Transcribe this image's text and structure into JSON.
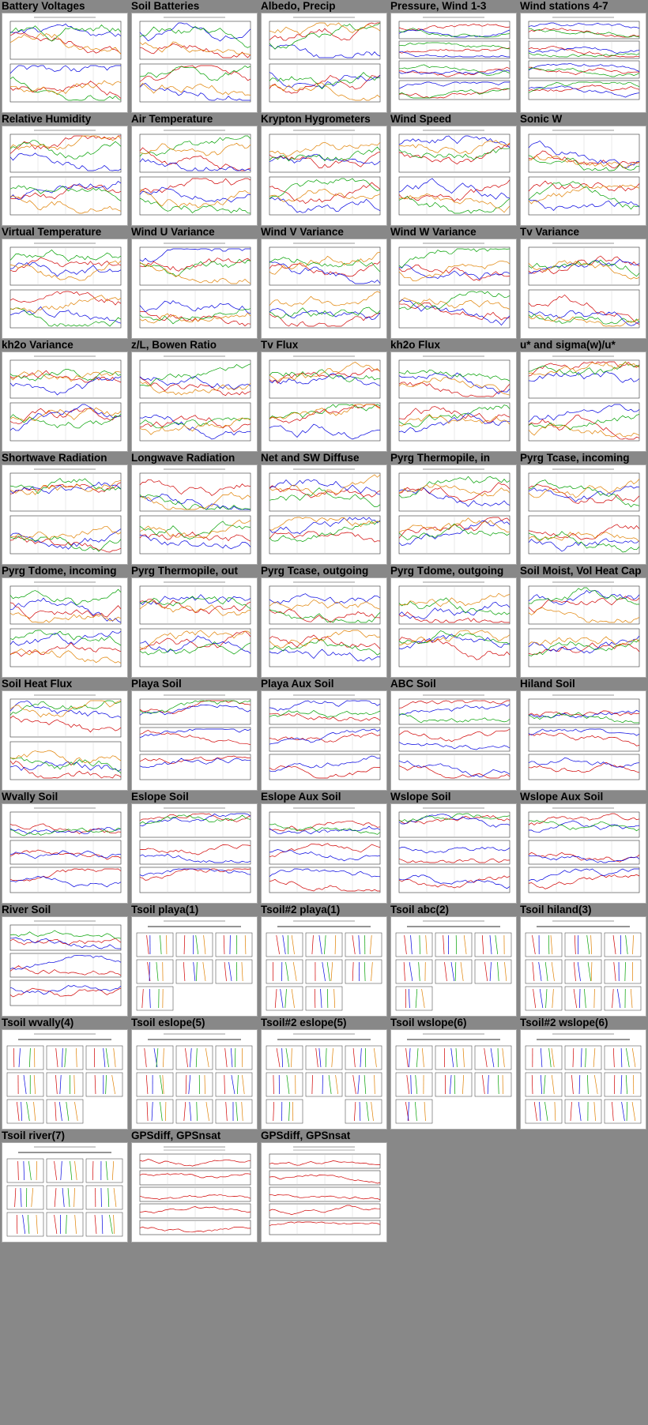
{
  "page": {
    "background": "#888888"
  },
  "thumbnails": [
    {
      "label": "Battery Voltages",
      "kind": "plot2"
    },
    {
      "label": "Soil Batteries",
      "kind": "plot2"
    },
    {
      "label": "Albedo, Precip",
      "kind": "plot2"
    },
    {
      "label": "Pressure, Wind 1-3",
      "kind": "plot4"
    },
    {
      "label": "Wind stations 4-7",
      "kind": "plot4"
    },
    {
      "label": "Relative Humidity",
      "kind": "plot2"
    },
    {
      "label": "Air Temperature",
      "kind": "plot2"
    },
    {
      "label": "Krypton Hygrometers",
      "kind": "plot2"
    },
    {
      "label": "Wind Speed",
      "kind": "plot2"
    },
    {
      "label": "Sonic W",
      "kind": "plot2"
    },
    {
      "label": "Virtual Temperature",
      "kind": "plot2"
    },
    {
      "label": "Wind U Variance",
      "kind": "plot2"
    },
    {
      "label": "Wind V Variance",
      "kind": "plot2"
    },
    {
      "label": "Wind W Variance",
      "kind": "plot2"
    },
    {
      "label": "Tv Variance",
      "kind": "plot2"
    },
    {
      "label": "kh2o Variance",
      "kind": "plot2"
    },
    {
      "label": "z/L, Bowen Ratio",
      "kind": "plot2"
    },
    {
      "label": "Tv Flux",
      "kind": "plot2"
    },
    {
      "label": "kh2o Flux",
      "kind": "plot2"
    },
    {
      "label": "u* and sigma(w)/u*",
      "kind": "plot2"
    },
    {
      "label": "Shortwave Radiation",
      "kind": "plot2"
    },
    {
      "label": "Longwave Radiation",
      "kind": "plot2"
    },
    {
      "label": "Net and SW Diffuse",
      "kind": "plot2"
    },
    {
      "label": "Pyrg Thermopile, in",
      "kind": "plot2"
    },
    {
      "label": "Pyrg Tcase, incoming",
      "kind": "plot2"
    },
    {
      "label": "Pyrg Tdome, incoming",
      "kind": "plot2"
    },
    {
      "label": "Pyrg Thermopile, out",
      "kind": "plot2"
    },
    {
      "label": "Pyrg Tcase, outgoing",
      "kind": "plot2"
    },
    {
      "label": "Pyrg Tdome, outgoing",
      "kind": "plot2"
    },
    {
      "label": "Soil Moist, Vol Heat Cap",
      "kind": "plot2"
    },
    {
      "label": "Soil Heat Flux",
      "kind": "plot2"
    },
    {
      "label": "Playa Soil",
      "kind": "plot3"
    },
    {
      "label": "Playa Aux Soil",
      "kind": "plot3"
    },
    {
      "label": "ABC Soil",
      "kind": "plot3"
    },
    {
      "label": "Hiland Soil",
      "kind": "plot3"
    },
    {
      "label": "Wvally Soil",
      "kind": "plot3"
    },
    {
      "label": "Eslope Soil",
      "kind": "plot3"
    },
    {
      "label": "Eslope Aux Soil",
      "kind": "plot3"
    },
    {
      "label": "Wslope Soil",
      "kind": "plot3"
    },
    {
      "label": "Wslope Aux Soil",
      "kind": "plot3"
    },
    {
      "label": "River Soil",
      "kind": "plot3"
    },
    {
      "label": "Tsoil playa(1)",
      "kind": "profile"
    },
    {
      "label": "Tsoil#2 playa(1)",
      "kind": "profile"
    },
    {
      "label": "Tsoil abc(2)",
      "kind": "profile"
    },
    {
      "label": "Tsoil hiland(3)",
      "kind": "profile"
    },
    {
      "label": "Tsoil wvally(4)",
      "kind": "profile"
    },
    {
      "label": "Tsoil eslope(5)",
      "kind": "profile"
    },
    {
      "label": "Tsoil#2 eslope(5)",
      "kind": "profile"
    },
    {
      "label": "Tsoil wslope(6)",
      "kind": "profile"
    },
    {
      "label": "Tsoil#2 wslope(6)",
      "kind": "profile"
    },
    {
      "label": "Tsoil river(7)",
      "kind": "profile"
    },
    {
      "label": "GPSdiff, GPSnsat",
      "kind": "gps"
    },
    {
      "label": "GPSdiff, GPSnsat",
      "kind": "gps"
    }
  ],
  "palette": [
    "#d00000",
    "#0000e0",
    "#00a000",
    "#e08000",
    "#a000a0",
    "#00a0a0",
    "#808000",
    "#606060"
  ]
}
